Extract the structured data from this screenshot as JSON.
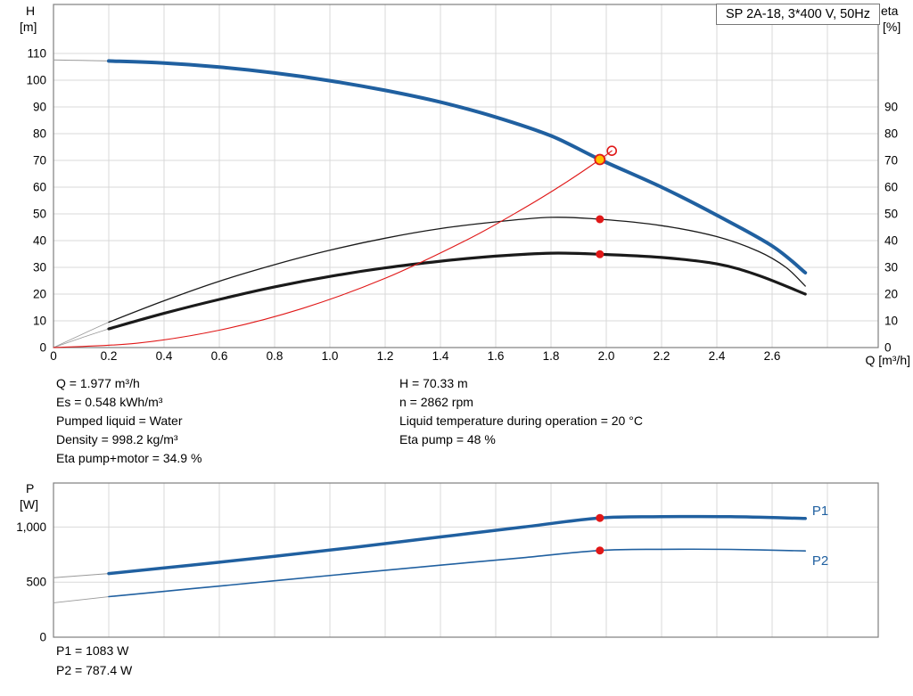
{
  "colors": {
    "blue": "#2060a0",
    "black": "#1a1a1a",
    "red": "#e01818",
    "yellow": "#ffc000",
    "gray": "#999999",
    "grid": "#d9d9d9",
    "border": "#7f7f7f"
  },
  "title_box": "SP 2A-18, 3*400 V, 50Hz",
  "axes_labels": {
    "h": "H",
    "h_unit": "[m]",
    "eta": "eta",
    "eta_unit": "[%]",
    "q": "Q [m³/h]",
    "p": "P",
    "p_unit": "[W]"
  },
  "info_left": [
    "Q = 1.977 m³/h",
    "Es = 0.548 kWh/m³",
    "Pumped liquid = Water",
    "Density = 998.2 kg/m³",
    "Eta pump+motor = 34.9 %"
  ],
  "info_right": [
    "H = 70.33 m",
    "n = 2862 rpm",
    "Liquid temperature during operation = 20 °C",
    "Eta pump = 48 %"
  ],
  "power_info": [
    "P1 = 1083 W",
    "P2 = 787.4 W"
  ],
  "chart_data": [
    {
      "type": "line",
      "title": "SP 2A-18, 3*400 V, 50Hz",
      "xlabel": "Q [m³/h]",
      "ylabel_left": "H [m]",
      "ylabel_right": "eta [%]",
      "xlim": [
        0,
        2.984
      ],
      "ylim": [
        0,
        128.33
      ],
      "grid": true,
      "x_ticks": [
        [
          0,
          "0"
        ],
        [
          0.2,
          "0.2"
        ],
        [
          0.4,
          "0.4"
        ],
        [
          0.6,
          "0.6"
        ],
        [
          0.8,
          "0.8"
        ],
        [
          1,
          "1.0"
        ],
        [
          1.2,
          "1.2"
        ],
        [
          1.4,
          "1.4"
        ],
        [
          1.6,
          "1.6"
        ],
        [
          1.8,
          "1.8"
        ],
        [
          2,
          "2.0"
        ],
        [
          2.2,
          "2.2"
        ],
        [
          2.4,
          "2.4"
        ],
        [
          2.6,
          "2.6"
        ]
      ],
      "y_ticks_left": [
        [
          0,
          "0"
        ],
        [
          10,
          "10"
        ],
        [
          20,
          "20"
        ],
        [
          30,
          "30"
        ],
        [
          40,
          "40"
        ],
        [
          50,
          "50"
        ],
        [
          60,
          "60"
        ],
        [
          70,
          "70"
        ],
        [
          80,
          "80"
        ],
        [
          90,
          "90"
        ],
        [
          100,
          "100"
        ],
        [
          110,
          "110"
        ]
      ],
      "y_ticks_right": [
        [
          0,
          "0"
        ],
        [
          10,
          "10"
        ],
        [
          20,
          "20"
        ],
        [
          30,
          "30"
        ],
        [
          40,
          "40"
        ],
        [
          50,
          "50"
        ],
        [
          60,
          "60"
        ],
        [
          70,
          "70"
        ],
        [
          80,
          "80"
        ],
        [
          90,
          "90"
        ]
      ],
      "grid_x": [
        0.2,
        0.4,
        0.6,
        0.8,
        1,
        1.2,
        1.4,
        1.6,
        1.8,
        2,
        2.2,
        2.4,
        2.6,
        2.8
      ],
      "grid_y": [
        10,
        20,
        30,
        40,
        50,
        60,
        70,
        80,
        90,
        100,
        110
      ],
      "series": [
        {
          "name": "hq-curve-extension",
          "color": "gray",
          "width": 1,
          "points": [
            [
              0,
              107.6
            ],
            [
              0.1,
              107.4
            ],
            [
              0.2,
              107.2
            ]
          ]
        },
        {
          "name": "hq-curve",
          "color": "blue",
          "width": 4,
          "points": [
            [
              0.2,
              107.2
            ],
            [
              0.4,
              106.4
            ],
            [
              0.6,
              104.9
            ],
            [
              0.8,
              102.7
            ],
            [
              1.0,
              99.8
            ],
            [
              1.2,
              96.2
            ],
            [
              1.4,
              91.8
            ],
            [
              1.6,
              86.2
            ],
            [
              1.8,
              79.2
            ],
            [
              1.977,
              70.33
            ],
            [
              2.2,
              60.0
            ],
            [
              2.4,
              49.5
            ],
            [
              2.6,
              38.0
            ],
            [
              2.72,
              28.0
            ]
          ]
        },
        {
          "name": "eta-pump-extension",
          "color": "gray",
          "width": 0.8,
          "points": [
            [
              0,
              0
            ],
            [
              0.1,
              4.8
            ],
            [
              0.2,
              9.5
            ]
          ]
        },
        {
          "name": "eta-pump-curve",
          "color": "black",
          "width": 1.3,
          "points": [
            [
              0.2,
              9.5
            ],
            [
              0.4,
              17.5
            ],
            [
              0.6,
              24.8
            ],
            [
              0.8,
              31.0
            ],
            [
              1.0,
              36.4
            ],
            [
              1.2,
              40.9
            ],
            [
              1.4,
              44.5
            ],
            [
              1.6,
              47.0
            ],
            [
              1.8,
              48.7
            ],
            [
              1.977,
              48.0
            ],
            [
              2.2,
              45.6
            ],
            [
              2.4,
              41.5
            ],
            [
              2.55,
              36.0
            ],
            [
              2.65,
              30.0
            ],
            [
              2.72,
              23.0
            ]
          ]
        },
        {
          "name": "eta-pump-motor-extension",
          "color": "gray",
          "width": 0.8,
          "points": [
            [
              0,
              0
            ],
            [
              0.1,
              3.6
            ],
            [
              0.2,
              7.0
            ]
          ]
        },
        {
          "name": "eta-pump-motor-curve",
          "color": "black",
          "width": 3.2,
          "points": [
            [
              0.2,
              7.0
            ],
            [
              0.4,
              12.8
            ],
            [
              0.6,
              18.0
            ],
            [
              0.8,
              22.7
            ],
            [
              1.0,
              26.6
            ],
            [
              1.2,
              29.8
            ],
            [
              1.4,
              32.3
            ],
            [
              1.6,
              34.2
            ],
            [
              1.8,
              35.3
            ],
            [
              1.977,
              34.9
            ],
            [
              2.2,
              33.7
            ],
            [
              2.4,
              31.3
            ],
            [
              2.55,
              27.0
            ],
            [
              2.72,
              20.0
            ]
          ]
        },
        {
          "name": "system-curve",
          "color": "red",
          "width": 1.1,
          "points": [
            [
              0,
              0
            ],
            [
              0.3,
              1.6
            ],
            [
              0.6,
              6.5
            ],
            [
              0.9,
              14.6
            ],
            [
              1.2,
              25.9
            ],
            [
              1.5,
              40.5
            ],
            [
              1.7,
              52.0
            ],
            [
              1.85,
              61.5
            ],
            [
              1.977,
              70.33
            ],
            [
              2.02,
              73.6
            ]
          ]
        }
      ],
      "markers": [
        {
          "name": "requested-duty-marker",
          "x": 2.02,
          "y": 73.6,
          "r": 5,
          "fill": "none",
          "stroke": "red",
          "sw": 1.6
        },
        {
          "name": "duty-point-marker",
          "x": 1.977,
          "y": 70.33,
          "r": 5.5,
          "fill": "yellow",
          "stroke": "red",
          "sw": 1.8
        },
        {
          "name": "eta-pump-duty-marker",
          "x": 1.977,
          "y": 48,
          "r": 4.5,
          "fill": "red"
        },
        {
          "name": "eta-pump-motor-duty-marker",
          "x": 1.977,
          "y": 34.9,
          "r": 4.5,
          "fill": "red"
        }
      ]
    },
    {
      "type": "line",
      "title": "Power curves",
      "xlabel": "Q [m³/h]",
      "ylabel_left": "P [W]",
      "xlim": [
        0,
        2.984
      ],
      "ylim": [
        0,
        1400
      ],
      "grid": true,
      "x_ticks": [],
      "y_ticks_left": [
        [
          0,
          "0"
        ],
        [
          500,
          "500"
        ],
        [
          1000,
          "1,000"
        ]
      ],
      "grid_x": [
        0.2,
        0.4,
        0.6,
        0.8,
        1,
        1.2,
        1.4,
        1.6,
        1.8,
        2,
        2.2,
        2.4,
        2.6,
        2.8
      ],
      "grid_y": [
        500,
        1000
      ],
      "series": [
        {
          "name": "p1-curve-extension",
          "color": "gray",
          "width": 1,
          "points": [
            [
              0,
              540
            ],
            [
              0.2,
              578
            ]
          ]
        },
        {
          "name": "p1-curve",
          "color": "blue",
          "width": 3.5,
          "points": [
            [
              0.2,
              578
            ],
            [
              0.5,
              655
            ],
            [
              0.8,
              735
            ],
            [
              1.1,
              820
            ],
            [
              1.4,
              910
            ],
            [
              1.7,
              1000
            ],
            [
              1.977,
              1083
            ],
            [
              2.2,
              1094
            ],
            [
              2.45,
              1094
            ],
            [
              2.72,
              1078
            ]
          ]
        },
        {
          "name": "p2-curve-extension",
          "color": "gray",
          "width": 0.9,
          "points": [
            [
              0,
              312
            ],
            [
              0.2,
              368
            ]
          ]
        },
        {
          "name": "p2-curve",
          "color": "blue",
          "width": 1.6,
          "points": [
            [
              0.2,
              368
            ],
            [
              0.5,
              440
            ],
            [
              0.8,
              512
            ],
            [
              1.1,
              584
            ],
            [
              1.4,
              654
            ],
            [
              1.7,
              722
            ],
            [
              1.977,
              787.4
            ],
            [
              2.2,
              798
            ],
            [
              2.45,
              797
            ],
            [
              2.72,
              783
            ]
          ]
        }
      ],
      "markers": [
        {
          "name": "p1-duty-marker",
          "x": 1.977,
          "y": 1083,
          "r": 4.5,
          "fill": "red"
        },
        {
          "name": "p2-duty-marker",
          "x": 1.977,
          "y": 787.4,
          "r": 4.5,
          "fill": "red"
        }
      ],
      "curve_labels": [
        {
          "name": "p1-curve-label",
          "text": "P1",
          "x": 2.745,
          "y": 1108
        },
        {
          "name": "p2-curve-label",
          "text": "P2",
          "x": 2.745,
          "y": 655
        }
      ]
    }
  ]
}
